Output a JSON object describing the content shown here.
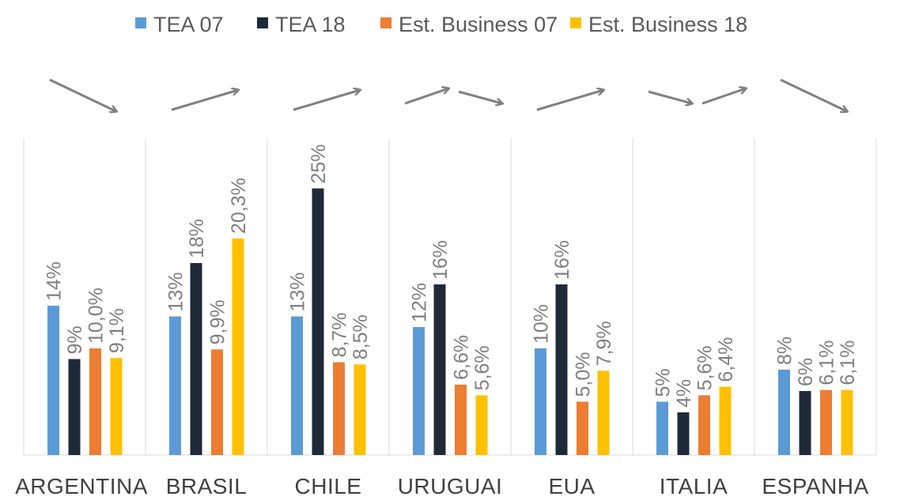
{
  "chart_data": {
    "type": "bar",
    "title": "",
    "xlabel": "",
    "ylabel": "",
    "ylim": [
      0,
      27
    ],
    "grid": false,
    "legend_position": "top",
    "categories": [
      "ARGENTINA",
      "BRASIL",
      "CHILE",
      "URUGUAI",
      "EUA",
      "ITALIA",
      "ESPANHA"
    ],
    "series": [
      {
        "name": "TEA 07",
        "color": "#5b9bd5",
        "values": [
          14,
          13,
          13,
          12,
          10,
          5,
          8
        ],
        "labels": [
          "14%",
          "13%",
          "13%",
          "12%",
          "10%",
          "5%",
          "8%"
        ]
      },
      {
        "name": "TEA 18",
        "color": "#1f2a38",
        "values": [
          9,
          18,
          25,
          16,
          16,
          4,
          6
        ],
        "labels": [
          "9%",
          "18%",
          "25%",
          "16%",
          "16%",
          "4%",
          "6%"
        ]
      },
      {
        "name": "Est. Business 07",
        "color": "#ed7d31",
        "values": [
          10.0,
          9.9,
          8.7,
          6.6,
          5.0,
          5.6,
          6.1
        ],
        "labels": [
          "10,0%",
          "9,9%",
          "8,7%",
          "6,6%",
          "5,0%",
          "5,6%",
          "6,1%"
        ]
      },
      {
        "name": "Est. Business 18",
        "color": "#ffc000",
        "values": [
          9.1,
          20.3,
          8.5,
          5.6,
          7.9,
          6.4,
          6.1
        ],
        "labels": [
          "9,1%",
          "20,3%",
          "8,5%",
          "5,6%",
          "7,9%",
          "6,4%",
          "6,1%"
        ]
      }
    ],
    "trend_arrows": [
      [
        "down"
      ],
      [
        "up"
      ],
      [
        "up"
      ],
      [
        "up",
        "down"
      ],
      [
        "up"
      ],
      [
        "down",
        "up"
      ],
      [
        "down"
      ]
    ]
  },
  "colors": {
    "arrow": "#808080",
    "divider": "#d9d9d9",
    "axis": "#d9d9d9"
  }
}
